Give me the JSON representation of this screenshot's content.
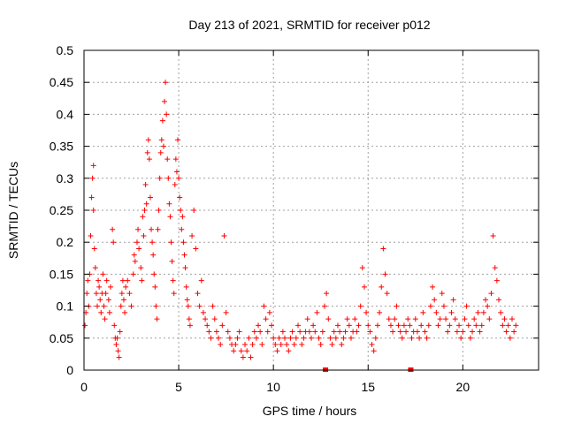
{
  "chart_data": {
    "type": "scatter",
    "title": "Day 213 of 2021, SRMTID for receiver p012",
    "xlabel": "GPS time / hours",
    "ylabel": "SRMTID / TECUs",
    "xlim": [
      0,
      24
    ],
    "ylim": [
      0,
      0.5
    ],
    "x_ticks": [
      0,
      5,
      10,
      15,
      20
    ],
    "x_tick_labels": [
      "0",
      "5",
      "10",
      "15",
      "20"
    ],
    "y_ticks": [
      0,
      0.05,
      0.1,
      0.15,
      0.2,
      0.25,
      0.3,
      0.35,
      0.4,
      0.45,
      0.5
    ],
    "y_tick_labels": [
      "0",
      "0.05",
      "0.1",
      "0.15",
      "0.2",
      "0.25",
      "0.3",
      "0.35",
      "0.4",
      "0.45",
      "0.5"
    ],
    "grid": true,
    "marker": "plus",
    "color": "#ff0000",
    "series": [
      {
        "name": "SRMTID",
        "points": [
          [
            0.05,
            0.07
          ],
          [
            0.1,
            0.09
          ],
          [
            0.15,
            0.12
          ],
          [
            0.2,
            0.14
          ],
          [
            0.25,
            0.1
          ],
          [
            0.3,
            0.15
          ],
          [
            0.35,
            0.21
          ],
          [
            0.4,
            0.27
          ],
          [
            0.45,
            0.3
          ],
          [
            0.5,
            0.32
          ],
          [
            0.5,
            0.25
          ],
          [
            0.55,
            0.19
          ],
          [
            0.6,
            0.16
          ],
          [
            0.65,
            0.12
          ],
          [
            0.7,
            0.1
          ],
          [
            0.75,
            0.14
          ],
          [
            0.8,
            0.13
          ],
          [
            0.85,
            0.11
          ],
          [
            0.9,
            0.09
          ],
          [
            0.95,
            0.12
          ],
          [
            1.0,
            0.15
          ],
          [
            1.05,
            0.1
          ],
          [
            1.1,
            0.08
          ],
          [
            1.15,
            0.12
          ],
          [
            1.2,
            0.14
          ],
          [
            1.3,
            0.11
          ],
          [
            1.35,
            0.09
          ],
          [
            1.4,
            0.13
          ],
          [
            1.5,
            0.22
          ],
          [
            1.55,
            0.2
          ],
          [
            1.6,
            0.07
          ],
          [
            1.65,
            0.05
          ],
          [
            1.7,
            0.04
          ],
          [
            1.75,
            0.05
          ],
          [
            1.8,
            0.03
          ],
          [
            1.85,
            0.02
          ],
          [
            1.9,
            0.06
          ],
          [
            1.95,
            0.1
          ],
          [
            2.0,
            0.12
          ],
          [
            2.05,
            0.14
          ],
          [
            2.1,
            0.11
          ],
          [
            2.15,
            0.09
          ],
          [
            2.2,
            0.13
          ],
          [
            2.3,
            0.14
          ],
          [
            2.4,
            0.12
          ],
          [
            2.5,
            0.1
          ],
          [
            2.6,
            0.15
          ],
          [
            2.65,
            0.18
          ],
          [
            2.7,
            0.17
          ],
          [
            2.8,
            0.2
          ],
          [
            2.85,
            0.22
          ],
          [
            2.9,
            0.19
          ],
          [
            3.0,
            0.16
          ],
          [
            3.05,
            0.14
          ],
          [
            3.1,
            0.24
          ],
          [
            3.15,
            0.21
          ],
          [
            3.2,
            0.25
          ],
          [
            3.25,
            0.29
          ],
          [
            3.3,
            0.26
          ],
          [
            3.35,
            0.34
          ],
          [
            3.4,
            0.36
          ],
          [
            3.45,
            0.33
          ],
          [
            3.5,
            0.27
          ],
          [
            3.55,
            0.22
          ],
          [
            3.6,
            0.2
          ],
          [
            3.65,
            0.18
          ],
          [
            3.7,
            0.15
          ],
          [
            3.75,
            0.13
          ],
          [
            3.8,
            0.1
          ],
          [
            3.85,
            0.08
          ],
          [
            3.9,
            0.22
          ],
          [
            3.95,
            0.25
          ],
          [
            4.0,
            0.3
          ],
          [
            4.05,
            0.34
          ],
          [
            4.1,
            0.36
          ],
          [
            4.15,
            0.39
          ],
          [
            4.2,
            0.35
          ],
          [
            4.25,
            0.42
          ],
          [
            4.3,
            0.45
          ],
          [
            4.35,
            0.4
          ],
          [
            4.4,
            0.33
          ],
          [
            4.45,
            0.3
          ],
          [
            4.5,
            0.26
          ],
          [
            4.55,
            0.24
          ],
          [
            4.6,
            0.2
          ],
          [
            4.65,
            0.17
          ],
          [
            4.7,
            0.14
          ],
          [
            4.75,
            0.12
          ],
          [
            4.8,
            0.29
          ],
          [
            4.85,
            0.33
          ],
          [
            4.9,
            0.31
          ],
          [
            4.95,
            0.36
          ],
          [
            5.0,
            0.3
          ],
          [
            5.05,
            0.27
          ],
          [
            5.1,
            0.25
          ],
          [
            5.15,
            0.22
          ],
          [
            5.2,
            0.24
          ],
          [
            5.25,
            0.2
          ],
          [
            5.3,
            0.18
          ],
          [
            5.35,
            0.16
          ],
          [
            5.4,
            0.13
          ],
          [
            5.45,
            0.11
          ],
          [
            5.5,
            0.1
          ],
          [
            5.55,
            0.08
          ],
          [
            5.6,
            0.07
          ],
          [
            5.7,
            0.21
          ],
          [
            5.8,
            0.25
          ],
          [
            5.9,
            0.19
          ],
          [
            6.0,
            0.12
          ],
          [
            6.1,
            0.1
          ],
          [
            6.2,
            0.14
          ],
          [
            6.3,
            0.09
          ],
          [
            6.4,
            0.08
          ],
          [
            6.5,
            0.07
          ],
          [
            6.6,
            0.06
          ],
          [
            6.7,
            0.05
          ],
          [
            6.8,
            0.1
          ],
          [
            6.9,
            0.08
          ],
          [
            7.0,
            0.06
          ],
          [
            7.1,
            0.05
          ],
          [
            7.2,
            0.04
          ],
          [
            7.3,
            0.07
          ],
          [
            7.4,
            0.21
          ],
          [
            7.5,
            0.09
          ],
          [
            7.6,
            0.06
          ],
          [
            7.7,
            0.05
          ],
          [
            7.8,
            0.04
          ],
          [
            7.9,
            0.03
          ],
          [
            8.0,
            0.04
          ],
          [
            8.1,
            0.05
          ],
          [
            8.2,
            0.06
          ],
          [
            8.3,
            0.03
          ],
          [
            8.4,
            0.02
          ],
          [
            8.5,
            0.04
          ],
          [
            8.6,
            0.03
          ],
          [
            8.7,
            0.05
          ],
          [
            8.8,
            0.02
          ],
          [
            8.9,
            0.04
          ],
          [
            9.0,
            0.06
          ],
          [
            9.1,
            0.05
          ],
          [
            9.2,
            0.07
          ],
          [
            9.3,
            0.06
          ],
          [
            9.4,
            0.04
          ],
          [
            9.5,
            0.1
          ],
          [
            9.6,
            0.08
          ],
          [
            9.7,
            0.06
          ],
          [
            9.8,
            0.09
          ],
          [
            9.9,
            0.07
          ],
          [
            10.0,
            0.05
          ],
          [
            10.1,
            0.04
          ],
          [
            10.2,
            0.03
          ],
          [
            10.3,
            0.05
          ],
          [
            10.4,
            0.04
          ],
          [
            10.5,
            0.06
          ],
          [
            10.6,
            0.05
          ],
          [
            10.7,
            0.04
          ],
          [
            10.8,
            0.03
          ],
          [
            10.9,
            0.05
          ],
          [
            11.0,
            0.06
          ],
          [
            11.1,
            0.04
          ],
          [
            11.2,
            0.05
          ],
          [
            11.3,
            0.07
          ],
          [
            11.4,
            0.06
          ],
          [
            11.5,
            0.04
          ],
          [
            11.6,
            0.05
          ],
          [
            11.7,
            0.06
          ],
          [
            11.8,
            0.08
          ],
          [
            11.9,
            0.06
          ],
          [
            12.0,
            0.05
          ],
          [
            12.1,
            0.07
          ],
          [
            12.2,
            0.06
          ],
          [
            12.3,
            0.09
          ],
          [
            12.4,
            0.05
          ],
          [
            12.5,
            0.04
          ],
          [
            12.6,
            0.06
          ],
          [
            12.7,
            0.1
          ],
          [
            12.8,
            0.12
          ],
          [
            12.9,
            0.08
          ],
          [
            13.0,
            0.05
          ],
          [
            13.1,
            0.04
          ],
          [
            13.2,
            0.06
          ],
          [
            13.3,
            0.05
          ],
          [
            13.4,
            0.07
          ],
          [
            13.5,
            0.06
          ],
          [
            13.6,
            0.04
          ],
          [
            13.7,
            0.05
          ],
          [
            13.8,
            0.06
          ],
          [
            13.9,
            0.08
          ],
          [
            14.0,
            0.07
          ],
          [
            14.1,
            0.05
          ],
          [
            14.2,
            0.06
          ],
          [
            14.3,
            0.08
          ],
          [
            14.4,
            0.06
          ],
          [
            14.5,
            0.07
          ],
          [
            14.6,
            0.1
          ],
          [
            14.7,
            0.16
          ],
          [
            14.8,
            0.13
          ],
          [
            14.9,
            0.09
          ],
          [
            15.0,
            0.07
          ],
          [
            15.1,
            0.06
          ],
          [
            15.2,
            0.04
          ],
          [
            15.3,
            0.03
          ],
          [
            15.4,
            0.05
          ],
          [
            15.5,
            0.07
          ],
          [
            15.6,
            0.09
          ],
          [
            15.7,
            0.13
          ],
          [
            15.8,
            0.19
          ],
          [
            15.9,
            0.15
          ],
          [
            16.0,
            0.12
          ],
          [
            16.1,
            0.08
          ],
          [
            16.2,
            0.07
          ],
          [
            16.3,
            0.06
          ],
          [
            16.4,
            0.08
          ],
          [
            16.5,
            0.1
          ],
          [
            16.6,
            0.07
          ],
          [
            16.7,
            0.06
          ],
          [
            16.8,
            0.05
          ],
          [
            16.9,
            0.07
          ],
          [
            17.0,
            0.06
          ],
          [
            17.1,
            0.08
          ],
          [
            17.2,
            0.07
          ],
          [
            17.3,
            0.05
          ],
          [
            17.4,
            0.06
          ],
          [
            17.5,
            0.08
          ],
          [
            17.6,
            0.06
          ],
          [
            17.7,
            0.05
          ],
          [
            17.8,
            0.07
          ],
          [
            17.9,
            0.09
          ],
          [
            18.0,
            0.06
          ],
          [
            18.1,
            0.05
          ],
          [
            18.2,
            0.07
          ],
          [
            18.3,
            0.1
          ],
          [
            18.4,
            0.13
          ],
          [
            18.5,
            0.11
          ],
          [
            18.6,
            0.09
          ],
          [
            18.7,
            0.07
          ],
          [
            18.8,
            0.08
          ],
          [
            18.9,
            0.12
          ],
          [
            19.0,
            0.1
          ],
          [
            19.1,
            0.08
          ],
          [
            19.2,
            0.06
          ],
          [
            19.3,
            0.07
          ],
          [
            19.4,
            0.09
          ],
          [
            19.5,
            0.11
          ],
          [
            19.6,
            0.08
          ],
          [
            19.7,
            0.06
          ],
          [
            19.8,
            0.07
          ],
          [
            19.9,
            0.05
          ],
          [
            20.0,
            0.06
          ],
          [
            20.1,
            0.08
          ],
          [
            20.2,
            0.1
          ],
          [
            20.3,
            0.07
          ],
          [
            20.4,
            0.05
          ],
          [
            20.5,
            0.06
          ],
          [
            20.6,
            0.08
          ],
          [
            20.7,
            0.07
          ],
          [
            20.8,
            0.09
          ],
          [
            20.9,
            0.06
          ],
          [
            21.0,
            0.07
          ],
          [
            21.1,
            0.09
          ],
          [
            21.2,
            0.11
          ],
          [
            21.3,
            0.1
          ],
          [
            21.4,
            0.08
          ],
          [
            21.5,
            0.12
          ],
          [
            21.6,
            0.21
          ],
          [
            21.7,
            0.16
          ],
          [
            21.8,
            0.14
          ],
          [
            21.9,
            0.11
          ],
          [
            22.0,
            0.09
          ],
          [
            22.1,
            0.07
          ],
          [
            22.2,
            0.08
          ],
          [
            22.3,
            0.06
          ],
          [
            22.4,
            0.07
          ],
          [
            22.5,
            0.05
          ],
          [
            22.6,
            0.08
          ],
          [
            22.7,
            0.06
          ],
          [
            22.8,
            0.07
          ]
        ]
      }
    ],
    "gap_markers": [
      12.75,
      17.25
    ]
  }
}
